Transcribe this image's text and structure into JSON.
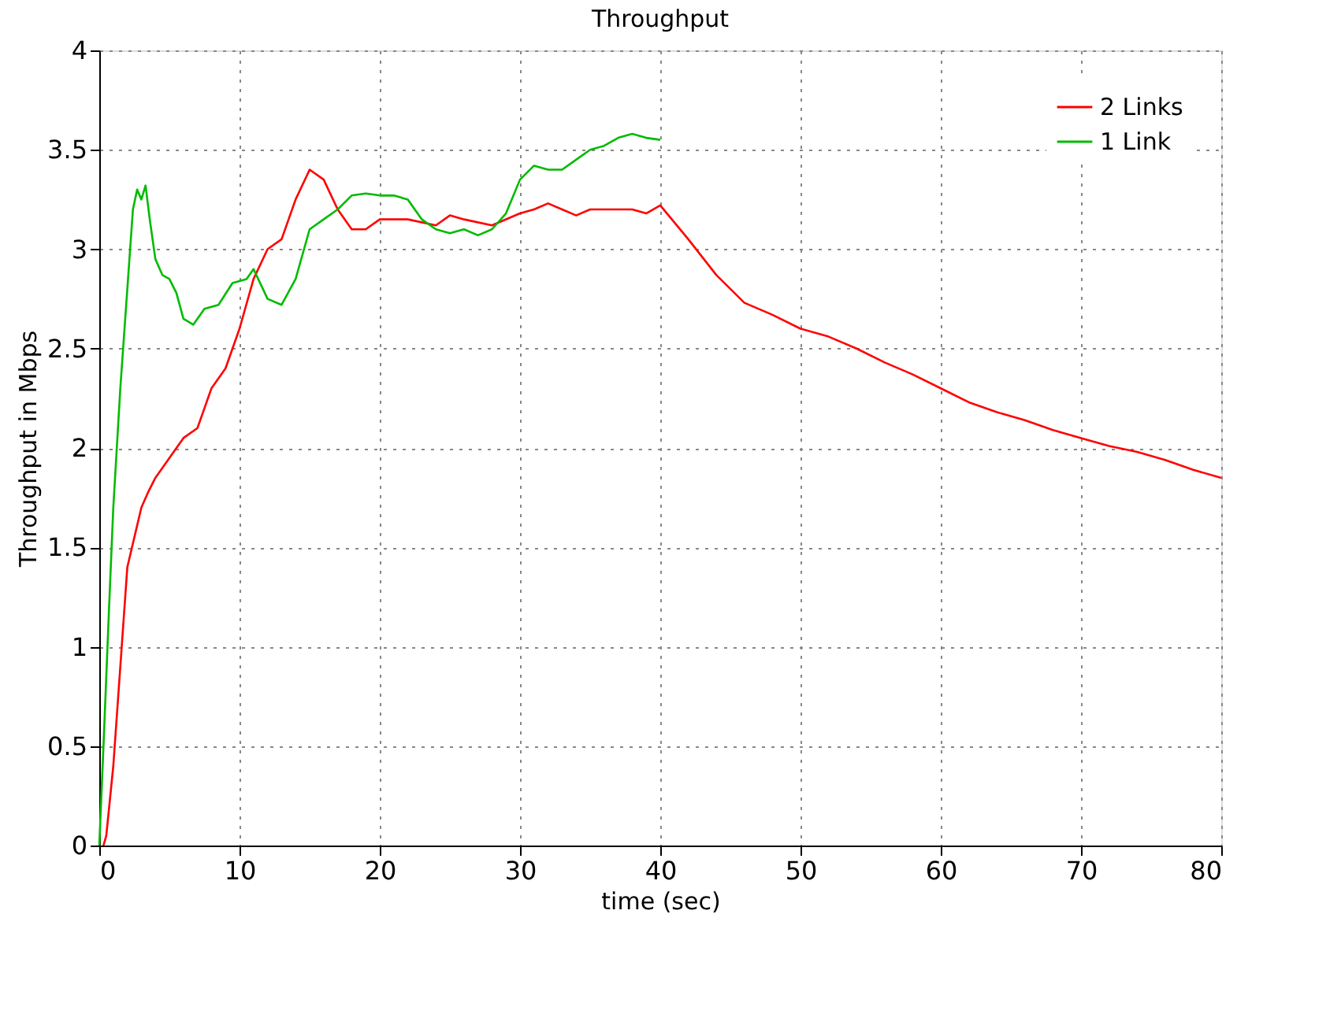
{
  "chart_data": {
    "type": "line",
    "title": "Throughput",
    "xlabel": "time (sec)",
    "ylabel": "Throughput in Mbps",
    "xlim": [
      0,
      80
    ],
    "xticks": [
      0,
      10,
      20,
      30,
      40,
      50,
      60,
      70,
      80
    ],
    "ylim": [
      0,
      4
    ],
    "yticks": [
      0,
      0.5,
      1,
      1.5,
      2,
      2.5,
      3,
      3.5,
      4
    ],
    "grid": true,
    "legend": "top right",
    "line_style": "solid",
    "marker": "none",
    "series": [
      {
        "name": "2 Links",
        "color": "#ff0000",
        "x": [
          0.3,
          0.5,
          1,
          1.5,
          2,
          2.5,
          3,
          3.5,
          4,
          5,
          6,
          7,
          8,
          9,
          10,
          11,
          12,
          13,
          14,
          15,
          16,
          17,
          18,
          19,
          20,
          22,
          24,
          25,
          26,
          28,
          30,
          31,
          32,
          33,
          34,
          35,
          36,
          38,
          39,
          40,
          42,
          44,
          46,
          48,
          50,
          52,
          54,
          56,
          58,
          60,
          62,
          64,
          66,
          68,
          70,
          72,
          74,
          76,
          78,
          80
        ],
        "values": [
          0,
          0.05,
          0.4,
          0.9,
          1.4,
          1.55,
          1.7,
          1.78,
          1.85,
          1.95,
          2.05,
          2.1,
          2.3,
          2.4,
          2.6,
          2.85,
          3.0,
          3.05,
          3.25,
          3.4,
          3.35,
          3.2,
          3.1,
          3.1,
          3.15,
          3.15,
          3.12,
          3.17,
          3.15,
          3.12,
          3.18,
          3.2,
          3.23,
          3.2,
          3.17,
          3.2,
          3.2,
          3.2,
          3.18,
          3.22,
          3.05,
          2.87,
          2.73,
          2.67,
          2.6,
          2.56,
          2.5,
          2.43,
          2.37,
          2.3,
          2.23,
          2.18,
          2.14,
          2.09,
          2.05,
          2.01,
          1.98,
          1.94,
          1.89,
          1.85
        ]
      },
      {
        "name": "1 Link",
        "color": "#00bb00",
        "x": [
          0,
          0.3,
          0.7,
          1,
          1.5,
          2,
          2.4,
          2.7,
          3,
          3.3,
          3.6,
          4,
          4.5,
          5,
          5.5,
          6,
          6.7,
          7.5,
          8.5,
          9.5,
          10.5,
          11,
          12,
          13,
          14,
          15,
          16,
          17,
          18,
          19,
          20,
          21,
          22,
          23,
          24,
          25,
          26,
          27,
          28,
          29,
          30,
          31,
          32,
          33,
          34,
          35,
          36,
          37,
          38,
          39,
          40
        ],
        "values": [
          0,
          0.5,
          1.2,
          1.7,
          2.3,
          2.8,
          3.2,
          3.3,
          3.25,
          3.32,
          3.15,
          2.95,
          2.87,
          2.85,
          2.78,
          2.65,
          2.62,
          2.7,
          2.72,
          2.83,
          2.85,
          2.9,
          2.75,
          2.72,
          2.85,
          3.1,
          3.15,
          3.2,
          3.27,
          3.28,
          3.27,
          3.27,
          3.25,
          3.15,
          3.1,
          3.08,
          3.1,
          3.07,
          3.1,
          3.18,
          3.35,
          3.42,
          3.4,
          3.4,
          3.45,
          3.5,
          3.52,
          3.56,
          3.58,
          3.56,
          3.55
        ]
      }
    ]
  }
}
